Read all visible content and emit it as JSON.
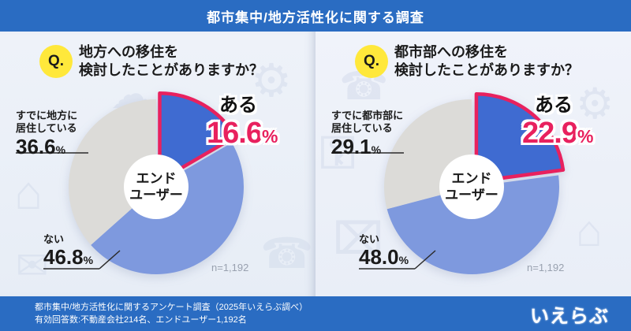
{
  "header": {
    "title": "都市集中/地方活性化に関する調査"
  },
  "footer": {
    "line1": "都市集中/地方活性化に関するアンケート調査（2025年いえらぶ調べ）",
    "line2": "有効回答数:不動産会社214名、エンドユーザー1,192名",
    "logo": "いえらぶ"
  },
  "colors": {
    "bar_blue": "#2a6cc2",
    "highlight_pink": "#e8215e",
    "yes_blue": "#3f6bd1",
    "no_blue": "#7e99de",
    "already_gray": "#dcdbd8",
    "badge_yellow": "#ffe83b"
  },
  "panels": [
    {
      "badge": "Q.",
      "question_line1": "地方への移住を",
      "question_line2": "検討したことがありますか？",
      "center_line1": "エンド",
      "center_line2": "ユーザー",
      "sample": "n=1,192",
      "answers": {
        "already": {
          "line1": "すでに地方に",
          "line2": "居住している",
          "value": "36.6",
          "unit": "%"
        },
        "yes": {
          "label": "ある",
          "value": "16.6",
          "unit": "%"
        },
        "no": {
          "label": "ない",
          "value": "46.8",
          "unit": "%"
        }
      }
    },
    {
      "badge": "Q.",
      "question_line1": "都市部への移住を",
      "question_line2": "検討したことがありますか？",
      "center_line1": "エンド",
      "center_line2": "ユーザー",
      "sample": "n=1,192",
      "answers": {
        "already": {
          "line1": "すでに都市部に",
          "line2": "居住している",
          "value": "29.1",
          "unit": "%"
        },
        "yes": {
          "label": "ある",
          "value": "22.9",
          "unit": "%"
        },
        "no": {
          "label": "ない",
          "value": "48.0",
          "unit": "%"
        }
      }
    }
  ],
  "chart_data": [
    {
      "type": "pie",
      "title": "地方への移住を検討したことがありますか？",
      "subject": "エンドユーザー",
      "n_label": "n=1,192",
      "labels": [
        "ある",
        "ない",
        "すでに地方に居住している"
      ],
      "values": [
        16.6,
        46.8,
        36.6
      ],
      "colors": [
        "#3f6bd1",
        "#7e99de",
        "#dcdbd8"
      ],
      "highlight_index": 0,
      "highlight_color": "#e8215e",
      "start": "top",
      "direction": "clockwise",
      "donut_center_label": "エンドユーザー"
    },
    {
      "type": "pie",
      "title": "都市部への移住を検討したことがありますか？",
      "subject": "エンドユーザー",
      "n_label": "n=1,192",
      "labels": [
        "ある",
        "ない",
        "すでに都市部に居住している"
      ],
      "values": [
        22.9,
        48.0,
        29.1
      ],
      "colors": [
        "#3f6bd1",
        "#7e99de",
        "#dcdbd8"
      ],
      "highlight_index": 0,
      "highlight_color": "#e8215e",
      "start": "top",
      "direction": "clockwise",
      "donut_center_label": "エンドユーザー"
    }
  ]
}
